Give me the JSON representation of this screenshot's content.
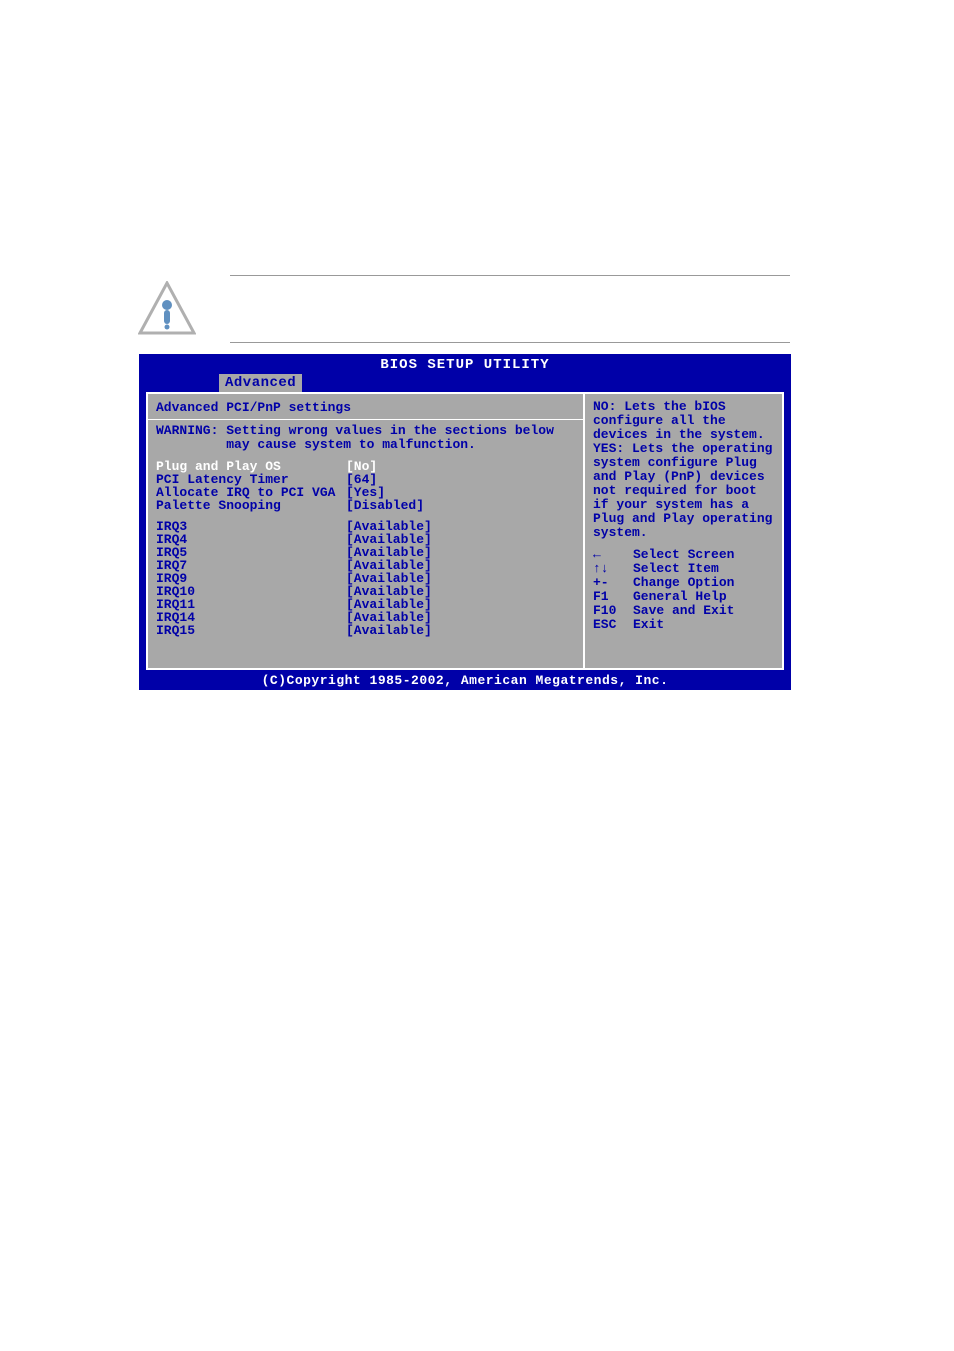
{
  "bios": {
    "title": "BIOS SETUP UTILITY",
    "active_tab": "Advanced",
    "section_title": "Advanced PCI/PnP settings",
    "warning_line1": "WARNING: Setting wrong values in the sections below",
    "warning_line2": "         may cause system to malfunction.",
    "settings_top": [
      {
        "label": "Plug and Play OS",
        "value": "[No]",
        "selected": true
      },
      {
        "label": "PCI Latency Timer",
        "value": "[64]",
        "selected": false
      },
      {
        "label": "Allocate IRQ to PCI VGA",
        "value": "[Yes]",
        "selected": false
      },
      {
        "label": "Palette Snooping",
        "value": "[Disabled]",
        "selected": false
      }
    ],
    "irqs": [
      {
        "label": "IRQ3",
        "value": "[Available]"
      },
      {
        "label": "IRQ4",
        "value": "[Available]"
      },
      {
        "label": "IRQ5",
        "value": "[Available]"
      },
      {
        "label": "IRQ7",
        "value": "[Available]"
      },
      {
        "label": "IRQ9",
        "value": "[Available]"
      },
      {
        "label": "IRQ10",
        "value": "[Available]"
      },
      {
        "label": "IRQ11",
        "value": "[Available]"
      },
      {
        "label": "IRQ14",
        "value": "[Available]"
      },
      {
        "label": "IRQ15",
        "value": "[Available]"
      }
    ],
    "help_text": "NO: Lets the bIOS configure all the devices in the system. YES: Lets the operating system configure Plug and Play (PnP) devices not required for boot if your system has a Plug and Play operating system.",
    "nav": [
      {
        "key": "←",
        "label": "Select Screen"
      },
      {
        "key": "↑↓",
        "label": "Select Item"
      },
      {
        "key": "+-",
        "label": "Change Option"
      },
      {
        "key": "F1",
        "label": "General Help"
      },
      {
        "key": "F10",
        "label": "Save and Exit"
      },
      {
        "key": "ESC",
        "label": "Exit"
      }
    ],
    "footer": "(C)Copyright 1985-2002, American Megatrends, Inc."
  },
  "colors": {
    "bios_blue": "#0000a8",
    "bios_gray": "#a8a8a8",
    "white": "#ffffff"
  }
}
